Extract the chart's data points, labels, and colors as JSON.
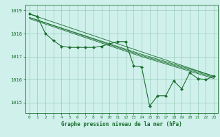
{
  "title": "Graphe pression niveau de la mer (hPa)",
  "background_color": "#cff0eb",
  "grid_color": "#99ccbb",
  "line_color": "#1a6e2e",
  "marker_color": "#1a6e2e",
  "xlim": [
    -0.5,
    23.5
  ],
  "ylim": [
    1014.55,
    1019.25
  ],
  "yticks": [
    1015,
    1016,
    1017,
    1018,
    1019
  ],
  "xticks": [
    0,
    1,
    2,
    3,
    4,
    5,
    6,
    7,
    8,
    9,
    10,
    11,
    12,
    13,
    14,
    15,
    16,
    17,
    18,
    19,
    20,
    21,
    22,
    23
  ],
  "main_x": [
    0,
    1,
    2,
    3,
    4,
    5,
    6,
    7,
    8,
    9,
    10,
    11,
    12,
    13,
    14,
    15,
    16,
    17,
    18,
    19,
    20,
    21,
    22,
    23
  ],
  "main_y": [
    1018.85,
    1018.75,
    1018.0,
    1017.7,
    1017.45,
    1017.4,
    1017.4,
    1017.4,
    1017.4,
    1017.45,
    1017.55,
    1017.65,
    1017.65,
    1016.6,
    1016.55,
    1014.85,
    1015.3,
    1015.3,
    1015.95,
    1015.6,
    1016.3,
    1016.05,
    1016.0,
    1016.15
  ],
  "trend_lines": [
    {
      "x": [
        0,
        23
      ],
      "y": [
        1018.85,
        1016.15
      ]
    },
    {
      "x": [
        0,
        14,
        23
      ],
      "y": [
        1018.7,
        1017.1,
        1016.15
      ]
    },
    {
      "x": [
        0,
        14,
        23
      ],
      "y": [
        1018.7,
        1017.05,
        1016.1
      ]
    },
    {
      "x": [
        0,
        14,
        23
      ],
      "y": [
        1018.65,
        1017.0,
        1016.05
      ]
    }
  ]
}
